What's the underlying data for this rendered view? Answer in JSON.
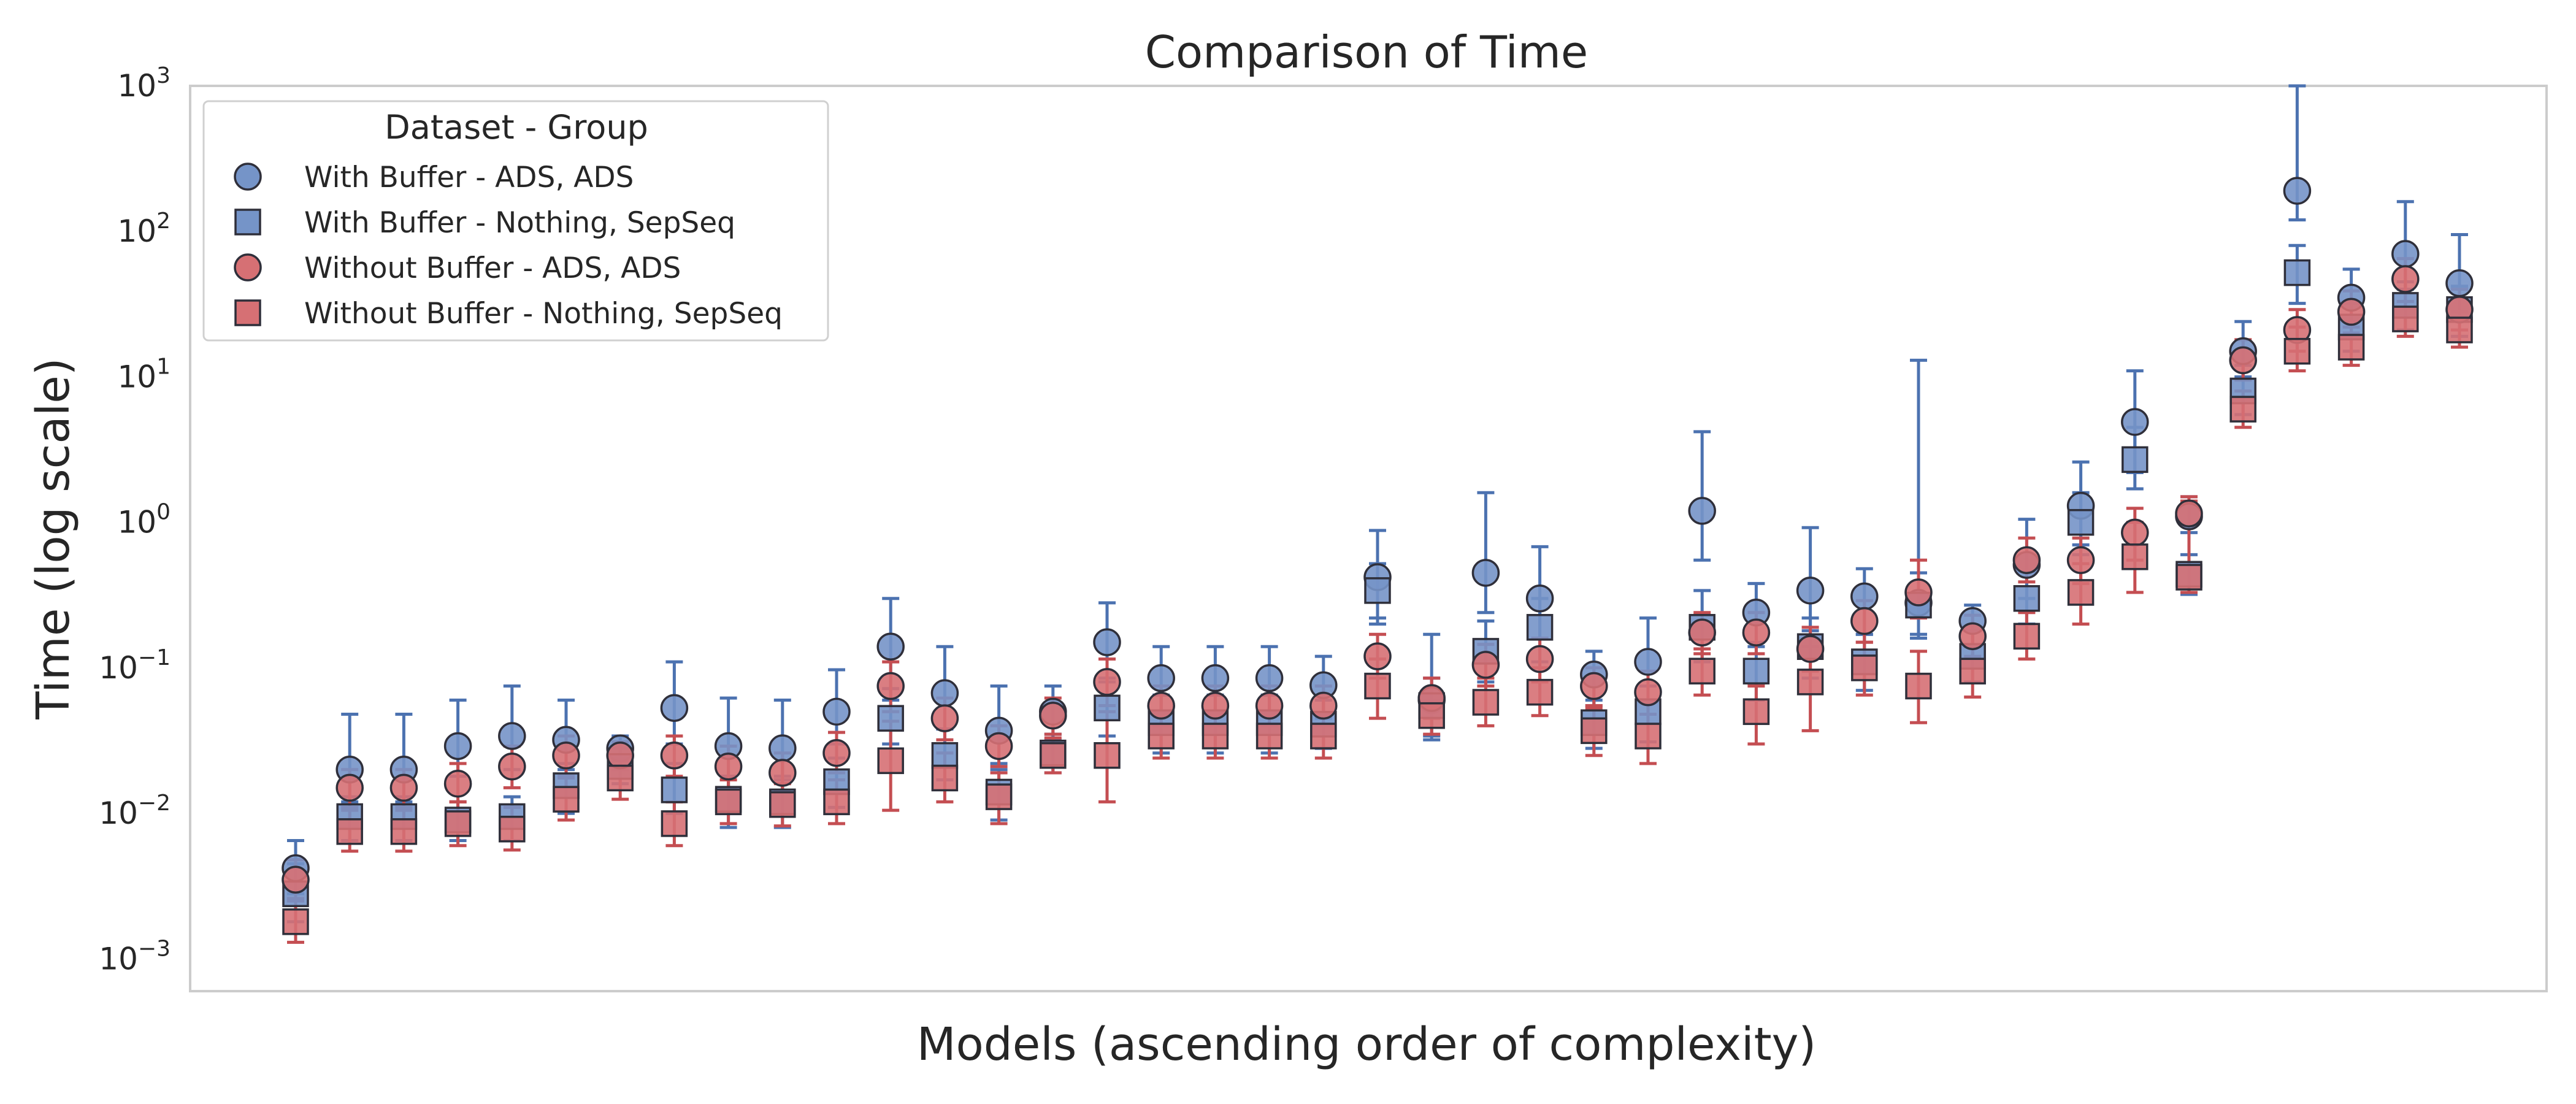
{
  "chart_data": {
    "type": "scatter",
    "title": "Comparison of Time",
    "xlabel": "Models (ascending order of complexity)",
    "ylabel": "Time (log scale)",
    "y_scale": "log",
    "ylim": [
      0.001,
      1000
    ],
    "y_tick_values": [
      0.001,
      0.01,
      0.1,
      1,
      10,
      100,
      1000
    ],
    "y_tick_labels": [
      {
        "base": "10",
        "exp": "−3"
      },
      {
        "base": "10",
        "exp": "−2"
      },
      {
        "base": "10",
        "exp": "−1"
      },
      {
        "base": "10",
        "exp": "0"
      },
      {
        "base": "10",
        "exp": "1"
      },
      {
        "base": "10",
        "exp": "2"
      },
      {
        "base": "10",
        "exp": "3"
      }
    ],
    "x_tick_labels": "none",
    "grid": false,
    "legend": {
      "title": "Dataset - Group",
      "placement": "top-left"
    },
    "colors": {
      "with_buffer": "#4c72b0",
      "without_buffer": "#c44e52",
      "with_buffer_marker": "#7594c8",
      "without_buffer_marker": "#d67074"
    },
    "series": [
      {
        "name": "With Buffer - ADS, ADS",
        "marker": "circle",
        "color": "#4c72b0",
        "values": [
          0.0042,
          0.02,
          0.02,
          0.029,
          0.034,
          0.032,
          0.028,
          0.053,
          0.029,
          0.028,
          0.05,
          0.14,
          0.067,
          0.037,
          0.05,
          0.15,
          0.085,
          0.085,
          0.085,
          0.076,
          0.42,
          0.06,
          0.45,
          0.3,
          0.09,
          0.11,
          1.2,
          0.24,
          0.34,
          0.31,
          0.28,
          0.21,
          0.51,
          1.3,
          4.9,
          1.1,
          15,
          190,
          35,
          70,
          44
        ],
        "err_low": [
          0.0028,
          0.012,
          0.012,
          0.018,
          0.02,
          0.02,
          0.023,
          0.03,
          0.018,
          0.017,
          0.03,
          0.06,
          0.038,
          0.022,
          0.032,
          0.08,
          0.05,
          0.05,
          0.05,
          0.045,
          0.2,
          0.032,
          0.24,
          0.16,
          0.055,
          0.06,
          0.55,
          0.14,
          0.18,
          0.17,
          0.16,
          0.14,
          0.3,
          0.7,
          2.2,
          0.85,
          10,
          120,
          24,
          40,
          26
        ],
        "err_high": [
          0.0065,
          0.048,
          0.048,
          0.06,
          0.075,
          0.06,
          0.034,
          0.11,
          0.062,
          0.06,
          0.097,
          0.3,
          0.14,
          0.075,
          0.075,
          0.28,
          0.14,
          0.14,
          0.14,
          0.12,
          0.88,
          0.17,
          1.6,
          0.68,
          0.13,
          0.22,
          4.2,
          0.38,
          0.92,
          0.48,
          13,
          0.27,
          1.05,
          2.6,
          11,
          1.5,
          24,
          1000,
          55,
          160,
          95
        ]
      },
      {
        "name": "With Buffer - Nothing, SepSeq",
        "marker": "square",
        "color": "#4c72b0",
        "values": [
          0.0028,
          0.0095,
          0.0095,
          0.009,
          0.0095,
          0.0155,
          0.021,
          0.0145,
          0.0125,
          0.012,
          0.0165,
          0.045,
          0.025,
          0.014,
          0.026,
          0.053,
          0.042,
          0.042,
          0.042,
          0.041,
          0.34,
          0.055,
          0.13,
          0.19,
          0.042,
          0.05,
          0.19,
          0.095,
          0.14,
          0.11,
          0.27,
          0.12,
          0.3,
          1.0,
          2.7,
          0.44,
          8,
          52,
          22,
          31,
          29
        ],
        "err_low": [
          0.0018,
          0.0065,
          0.0065,
          0.0065,
          0.0065,
          0.01,
          0.016,
          0.01,
          0.008,
          0.008,
          0.011,
          0.03,
          0.017,
          0.009,
          0.019,
          0.034,
          0.026,
          0.026,
          0.026,
          0.028,
          0.22,
          0.034,
          0.08,
          0.11,
          0.028,
          0.031,
          0.11,
          0.06,
          0.085,
          0.07,
          0.17,
          0.08,
          0.2,
          0.6,
          1.7,
          0.32,
          5.5,
          32,
          15,
          21,
          19
        ],
        "err_high": [
          0.0045,
          0.013,
          0.013,
          0.012,
          0.013,
          0.022,
          0.028,
          0.022,
          0.018,
          0.018,
          0.024,
          0.072,
          0.038,
          0.02,
          0.035,
          0.085,
          0.065,
          0.065,
          0.065,
          0.06,
          0.52,
          0.085,
          0.21,
          0.3,
          0.06,
          0.075,
          0.34,
          0.15,
          0.22,
          0.17,
          0.45,
          0.18,
          0.46,
          1.6,
          4.5,
          0.6,
          12,
          80,
          32,
          45,
          42
        ]
      },
      {
        "name": "Without Buffer - ADS, ADS",
        "marker": "circle",
        "color": "#c44e52",
        "values": [
          0.0035,
          0.015,
          0.015,
          0.016,
          0.021,
          0.025,
          0.025,
          0.025,
          0.021,
          0.019,
          0.026,
          0.075,
          0.045,
          0.029,
          0.047,
          0.08,
          0.055,
          0.055,
          0.055,
          0.055,
          0.12,
          0.062,
          0.105,
          0.115,
          0.075,
          0.068,
          0.175,
          0.175,
          0.135,
          0.21,
          0.33,
          0.165,
          0.55,
          0.55,
          0.85,
          1.15,
          13,
          21,
          28,
          47,
          29
        ],
        "err_low": [
          0.0026,
          0.011,
          0.011,
          0.012,
          0.015,
          0.018,
          0.02,
          0.018,
          0.015,
          0.014,
          0.019,
          0.05,
          0.032,
          0.021,
          0.035,
          0.055,
          0.04,
          0.04,
          0.04,
          0.04,
          0.085,
          0.045,
          0.075,
          0.08,
          0.055,
          0.048,
          0.125,
          0.125,
          0.095,
          0.15,
          0.22,
          0.12,
          0.39,
          0.38,
          0.55,
          0.95,
          9.5,
          15,
          20,
          33,
          21
        ],
        "err_high": [
          0.0048,
          0.02,
          0.02,
          0.022,
          0.029,
          0.034,
          0.031,
          0.034,
          0.029,
          0.026,
          0.036,
          0.11,
          0.062,
          0.04,
          0.062,
          0.115,
          0.075,
          0.075,
          0.075,
          0.075,
          0.17,
          0.085,
          0.145,
          0.16,
          0.1,
          0.095,
          0.24,
          0.24,
          0.19,
          0.29,
          0.55,
          0.23,
          0.78,
          0.78,
          1.25,
          1.4,
          18,
          29,
          39,
          65,
          40
        ]
      },
      {
        "name": "Without Buffer - Nothing, SepSeq",
        "marker": "square",
        "color": "#c44e52",
        "values": [
          0.0018,
          0.0075,
          0.0075,
          0.0085,
          0.0078,
          0.0125,
          0.0175,
          0.0085,
          0.012,
          0.0115,
          0.012,
          0.023,
          0.0175,
          0.013,
          0.025,
          0.025,
          0.034,
          0.034,
          0.034,
          0.034,
          0.075,
          0.047,
          0.058,
          0.068,
          0.037,
          0.034,
          0.095,
          0.05,
          0.08,
          0.1,
          0.075,
          0.095,
          0.165,
          0.33,
          0.58,
          0.42,
          6,
          15,
          16,
          25,
          21
        ],
        "err_low": [
          0.0013,
          0.0055,
          0.0055,
          0.006,
          0.0056,
          0.009,
          0.0125,
          0.006,
          0.0085,
          0.0082,
          0.0085,
          0.0105,
          0.012,
          0.0085,
          0.019,
          0.012,
          0.024,
          0.024,
          0.024,
          0.024,
          0.045,
          0.035,
          0.04,
          0.047,
          0.025,
          0.022,
          0.065,
          0.03,
          0.037,
          0.065,
          0.042,
          0.063,
          0.115,
          0.2,
          0.33,
          0.33,
          4.5,
          11,
          12,
          19,
          16
        ],
        "err_high": [
          0.0025,
          0.0105,
          0.0105,
          0.012,
          0.011,
          0.0175,
          0.024,
          0.012,
          0.017,
          0.016,
          0.017,
          0.043,
          0.026,
          0.019,
          0.033,
          0.05,
          0.048,
          0.048,
          0.048,
          0.048,
          0.115,
          0.06,
          0.085,
          0.1,
          0.053,
          0.048,
          0.135,
          0.075,
          0.14,
          0.15,
          0.13,
          0.14,
          0.24,
          0.52,
          1.0,
          1.5,
          8,
          22,
          22,
          33,
          28
        ]
      }
    ]
  }
}
